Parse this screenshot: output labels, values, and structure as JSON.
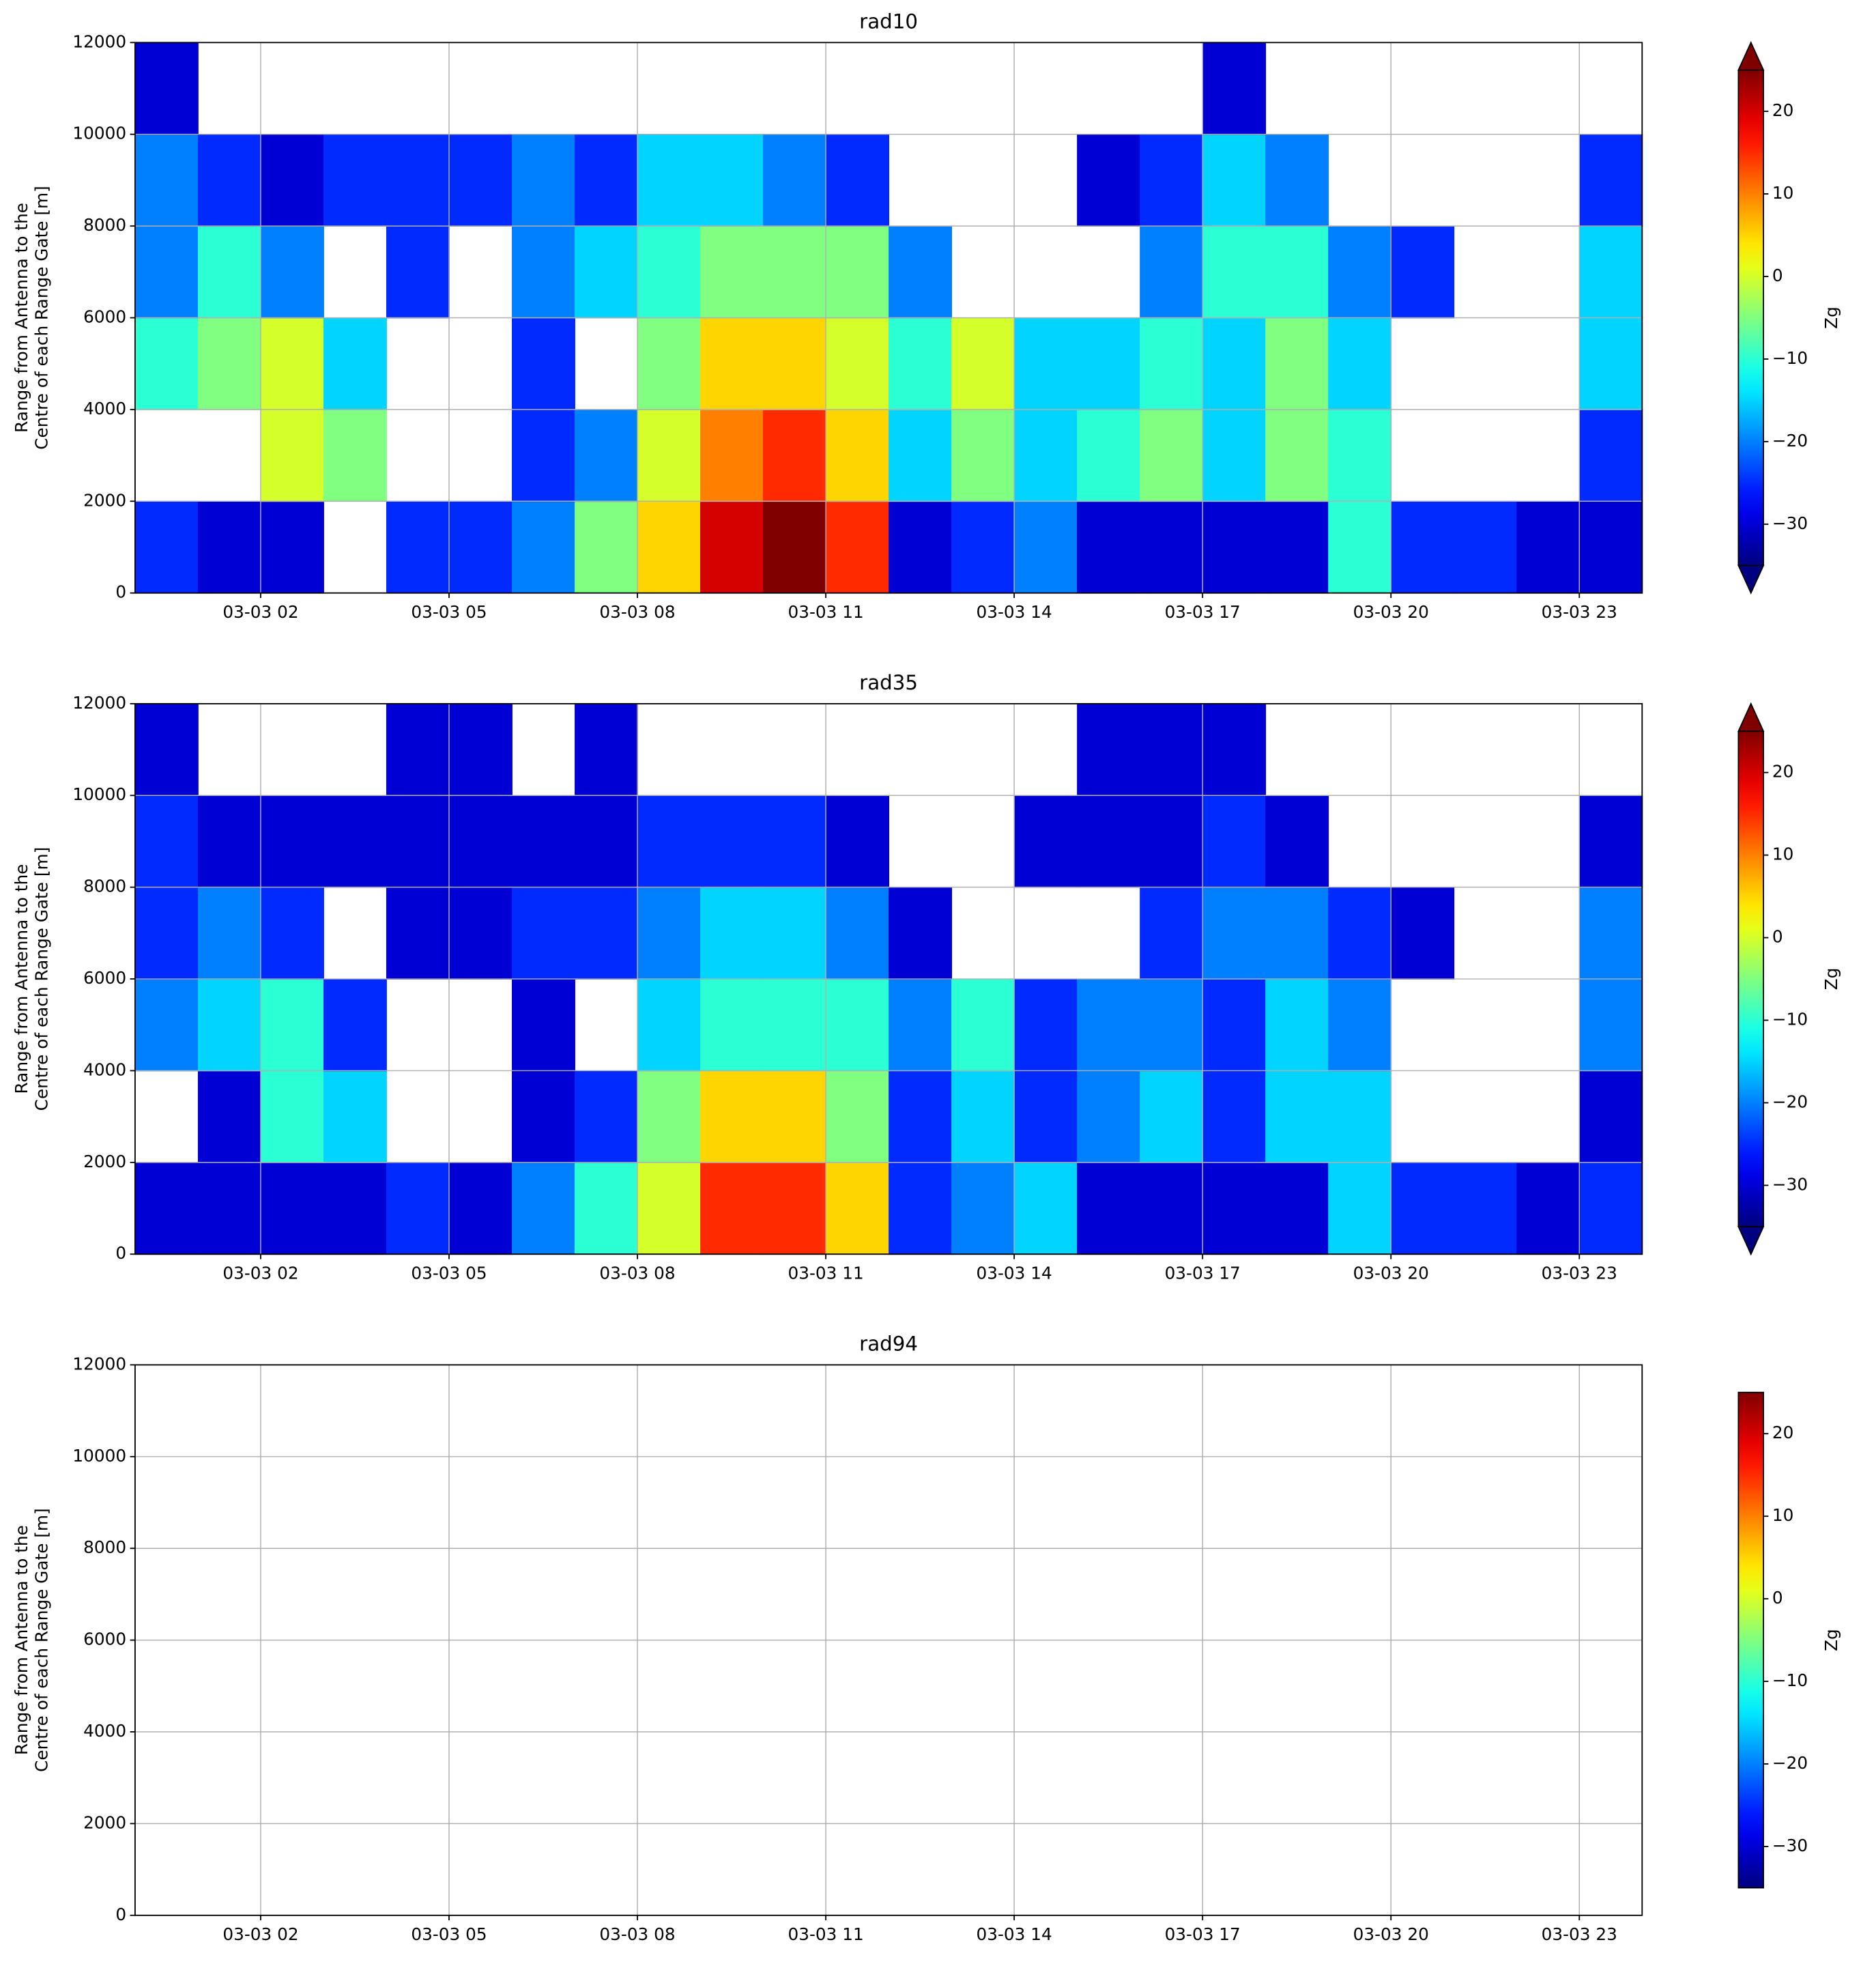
{
  "chart_data": [
    {
      "type": "heatmap",
      "title": "rad10",
      "ylabel": [
        "Range from Antenna to the",
        "Centre of each Range Gate [m]"
      ],
      "colorbar_label": "Zg",
      "colormap": "jet",
      "clim": [
        -35,
        25
      ],
      "extend": "both",
      "cticks": [
        {
          "value": -30,
          "label": "−30"
        },
        {
          "value": -20,
          "label": "−20"
        },
        {
          "value": -10,
          "label": "−10"
        },
        0,
        10,
        20
      ],
      "xlim": [
        0,
        24
      ],
      "ylim": [
        0,
        12000
      ],
      "xticks": [
        {
          "value": 2,
          "label": "03-03 02"
        },
        {
          "value": 5,
          "label": "03-03 05"
        },
        {
          "value": 8,
          "label": "03-03 08"
        },
        {
          "value": 11,
          "label": "03-03 11"
        },
        {
          "value": 14,
          "label": "03-03 14"
        },
        {
          "value": 17,
          "label": "03-03 17"
        },
        {
          "value": 20,
          "label": "03-03 20"
        },
        {
          "value": 23,
          "label": "03-03 23"
        }
      ],
      "yticks": [
        0,
        2000,
        4000,
        6000,
        8000,
        10000,
        12000
      ],
      "grid": true,
      "x": [
        0.5,
        1.5,
        2.5,
        3.5,
        4.5,
        5.5,
        6.5,
        7.5,
        8.5,
        9.5,
        10.5,
        11.5,
        12.5,
        13.5,
        14.5,
        15.5,
        16.5,
        17.5,
        18.5,
        19.5,
        20.5,
        21.5,
        22.5,
        23.5
      ],
      "y": [
        1000,
        3000,
        5000,
        7000,
        9000,
        11000
      ],
      "z": [
        [
          -25,
          -30,
          -30,
          null,
          -25,
          -25,
          -20,
          -5,
          5,
          20,
          25,
          15,
          -30,
          -25,
          -20,
          -30,
          -30,
          -30,
          -30,
          -10,
          -25,
          -25,
          -30,
          -30
        ],
        [
          null,
          null,
          0,
          -5,
          null,
          null,
          -25,
          -20,
          0,
          10,
          15,
          5,
          -15,
          -5,
          -15,
          -10,
          -5,
          -15,
          -5,
          -10,
          null,
          null,
          null,
          -25
        ],
        [
          -10,
          -5,
          0,
          -15,
          null,
          null,
          -25,
          null,
          -5,
          5,
          5,
          0,
          -10,
          0,
          -15,
          -15,
          -10,
          -15,
          -5,
          -15,
          null,
          null,
          null,
          -15
        ],
        [
          -20,
          -10,
          -20,
          null,
          -25,
          null,
          -20,
          -15,
          -10,
          -5,
          -5,
          -5,
          -20,
          null,
          null,
          null,
          -20,
          -10,
          -10,
          -20,
          -25,
          null,
          null,
          -15
        ],
        [
          -20,
          -25,
          -30,
          -25,
          -25,
          -25,
          -20,
          -25,
          -15,
          -15,
          -20,
          -25,
          null,
          null,
          null,
          -30,
          -25,
          -15,
          -20,
          null,
          null,
          null,
          null,
          -25
        ],
        [
          -30,
          null,
          null,
          null,
          null,
          null,
          null,
          null,
          null,
          null,
          null,
          null,
          null,
          null,
          null,
          null,
          null,
          -30,
          null,
          null,
          null,
          null,
          null,
          null
        ]
      ]
    },
    {
      "type": "heatmap",
      "title": "rad35",
      "ylabel": [
        "Range from Antenna to the",
        "Centre of each Range Gate [m]"
      ],
      "colorbar_label": "Zg",
      "colormap": "jet",
      "clim": [
        -35,
        25
      ],
      "extend": "both",
      "cticks": [
        {
          "value": -30,
          "label": "−30"
        },
        {
          "value": -20,
          "label": "−20"
        },
        {
          "value": -10,
          "label": "−10"
        },
        0,
        10,
        20
      ],
      "xlim": [
        0,
        24
      ],
      "ylim": [
        0,
        12000
      ],
      "xticks": [
        {
          "value": 2,
          "label": "03-03 02"
        },
        {
          "value": 5,
          "label": "03-03 05"
        },
        {
          "value": 8,
          "label": "03-03 08"
        },
        {
          "value": 11,
          "label": "03-03 11"
        },
        {
          "value": 14,
          "label": "03-03 14"
        },
        {
          "value": 17,
          "label": "03-03 17"
        },
        {
          "value": 20,
          "label": "03-03 20"
        },
        {
          "value": 23,
          "label": "03-03 23"
        }
      ],
      "yticks": [
        0,
        2000,
        4000,
        6000,
        8000,
        10000,
        12000
      ],
      "grid": true,
      "x": [
        0.5,
        1.5,
        2.5,
        3.5,
        4.5,
        5.5,
        6.5,
        7.5,
        8.5,
        9.5,
        10.5,
        11.5,
        12.5,
        13.5,
        14.5,
        15.5,
        16.5,
        17.5,
        18.5,
        19.5,
        20.5,
        21.5,
        22.5,
        23.5
      ],
      "y": [
        1000,
        3000,
        5000,
        7000,
        9000,
        11000
      ],
      "z": [
        [
          -30,
          -30,
          -30,
          -30,
          -25,
          -30,
          -20,
          -10,
          0,
          15,
          15,
          5,
          -25,
          -20,
          -15,
          -30,
          -30,
          -30,
          -30,
          -15,
          -25,
          -25,
          -30,
          -25
        ],
        [
          null,
          -30,
          -10,
          -15,
          null,
          null,
          -30,
          -25,
          -5,
          5,
          5,
          -5,
          -25,
          -15,
          -25,
          -20,
          -15,
          -25,
          -15,
          -15,
          null,
          null,
          null,
          -30
        ],
        [
          -20,
          -15,
          -10,
          -25,
          null,
          null,
          -30,
          null,
          -15,
          -10,
          -10,
          -10,
          -20,
          -10,
          -25,
          -20,
          -20,
          -25,
          -15,
          -20,
          null,
          null,
          null,
          -20
        ],
        [
          -25,
          -20,
          -25,
          null,
          -30,
          -30,
          -25,
          -25,
          -20,
          -15,
          -15,
          -20,
          -30,
          null,
          null,
          null,
          -25,
          -20,
          -20,
          -25,
          -30,
          null,
          null,
          -20
        ],
        [
          -25,
          -30,
          -30,
          -30,
          -30,
          -30,
          -30,
          -30,
          -25,
          -25,
          -25,
          -30,
          null,
          null,
          -30,
          -30,
          -30,
          -25,
          -30,
          null,
          null,
          null,
          null,
          -30
        ],
        [
          -30,
          null,
          null,
          null,
          -30,
          -30,
          null,
          -30,
          null,
          null,
          null,
          null,
          null,
          null,
          null,
          -30,
          -30,
          -30,
          null,
          null,
          null,
          null,
          null,
          null
        ]
      ]
    },
    {
      "type": "heatmap",
      "title": "rad94",
      "ylabel": [
        "Range from Antenna to the",
        "Centre of each Range Gate [m]"
      ],
      "colorbar_label": "Zg",
      "colormap": "jet",
      "clim": [
        -35,
        25
      ],
      "cticks": [
        {
          "value": -30,
          "label": "−30"
        },
        {
          "value": -20,
          "label": "−20"
        },
        {
          "value": -10,
          "label": "−10"
        },
        0,
        10,
        20
      ],
      "xlim": [
        0,
        24
      ],
      "ylim": [
        0,
        12000
      ],
      "xticks": [
        {
          "value": 2,
          "label": "03-03 02"
        },
        {
          "value": 5,
          "label": "03-03 05"
        },
        {
          "value": 8,
          "label": "03-03 08"
        },
        {
          "value": 11,
          "label": "03-03 11"
        },
        {
          "value": 14,
          "label": "03-03 14"
        },
        {
          "value": 17,
          "label": "03-03 17"
        },
        {
          "value": 20,
          "label": "03-03 20"
        },
        {
          "value": 23,
          "label": "03-03 23"
        }
      ],
      "yticks": [
        0,
        2000,
        4000,
        6000,
        8000,
        10000,
        12000
      ],
      "grid": true
    }
  ]
}
